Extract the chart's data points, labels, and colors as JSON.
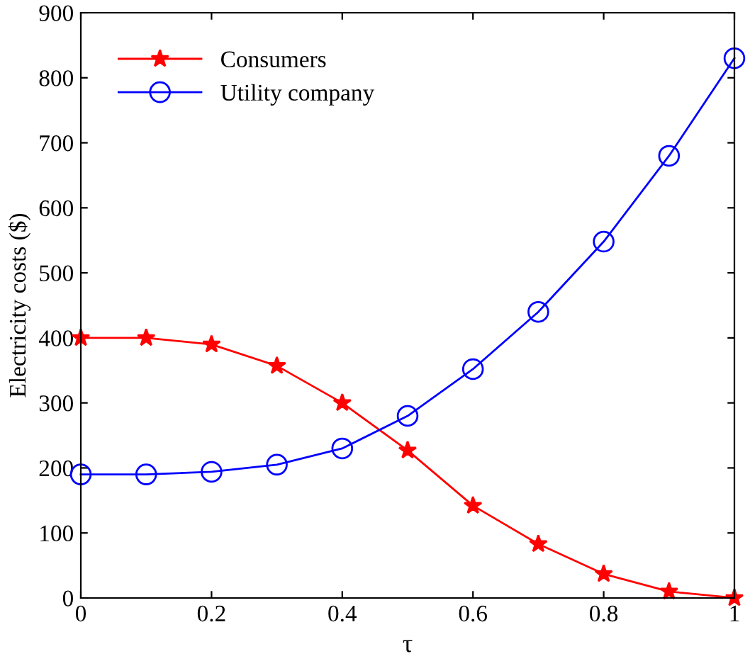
{
  "chart_data": {
    "type": "line",
    "xlabel": "τ",
    "ylabel": "Electricity costs ($)",
    "x": [
      0,
      0.1,
      0.2,
      0.3,
      0.4,
      0.5,
      0.6,
      0.7,
      0.8,
      0.9,
      1
    ],
    "xlim": [
      0,
      1
    ],
    "xticks": [
      0,
      0.2,
      0.4,
      0.6,
      0.8,
      1
    ],
    "ylim": [
      0,
      900
    ],
    "yticks": [
      0,
      100,
      200,
      300,
      400,
      500,
      600,
      700,
      800,
      900
    ],
    "grid": false,
    "legend": "top left",
    "series": [
      {
        "name": "Consumers",
        "color": "#ff0000",
        "marker": "star",
        "values": [
          400,
          400,
          390,
          357,
          300,
          227,
          142,
          83,
          37,
          10,
          0
        ]
      },
      {
        "name": "Utility company",
        "color": "#0000ff",
        "marker": "circle",
        "values": [
          190,
          190,
          194,
          205,
          230,
          280,
          352,
          440,
          548,
          680,
          830
        ]
      }
    ]
  }
}
